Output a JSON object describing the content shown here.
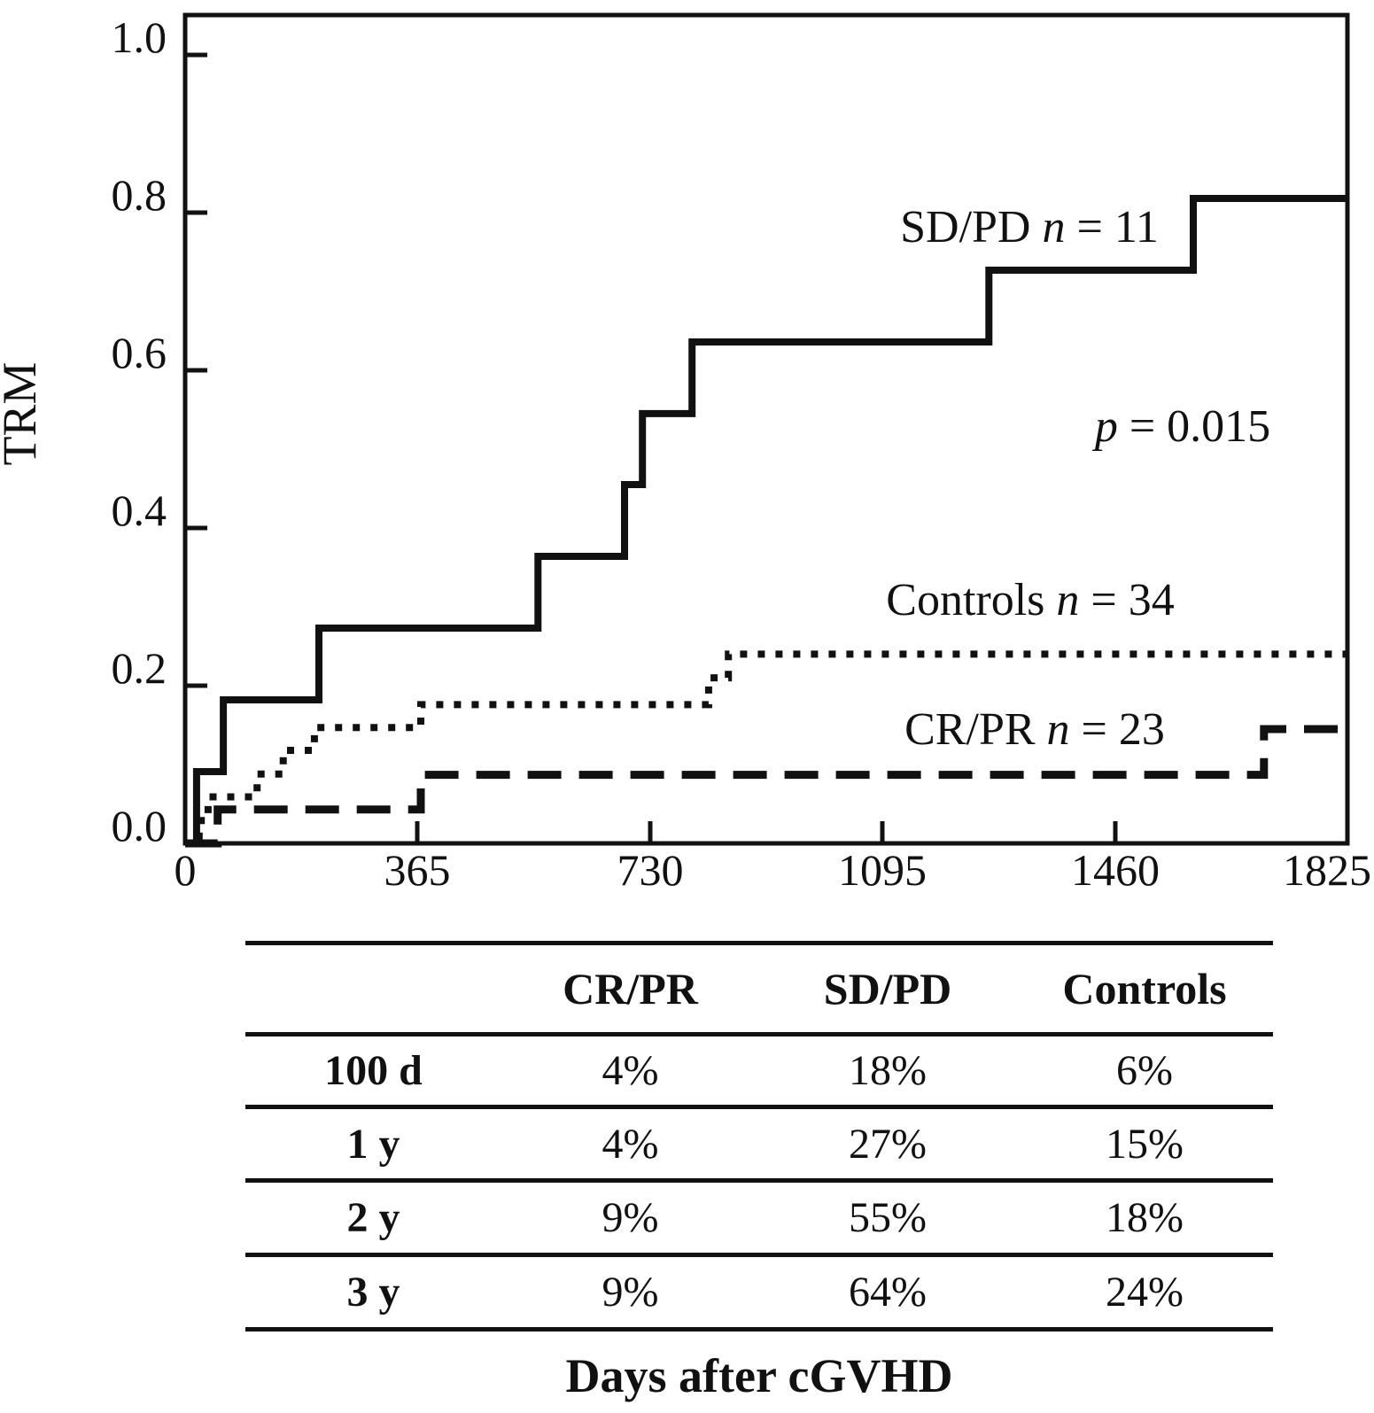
{
  "figure": {
    "ylabel": "TRM",
    "xlabel": "Days after cGVHD"
  },
  "chart_data": {
    "type": "line",
    "subtype": "cumulative-incidence step curves",
    "title": "",
    "xlabel": "Days after cGVHD",
    "ylabel": "TRM",
    "xlim": [
      0,
      1825
    ],
    "ylim": [
      0,
      1.05
    ],
    "grid": false,
    "legend_position": "labels drawn next to curves inside plot",
    "xticks": [
      "0",
      "365",
      "730",
      "1095",
      "1460",
      "1825"
    ],
    "yticks": [
      "0.0",
      "0.2",
      "0.4",
      "0.6",
      "0.8",
      "1.0"
    ],
    "pvalue": {
      "italic": "p",
      "rest": " = 0.015"
    },
    "series": [
      {
        "name": "SD/PD",
        "n": 11,
        "line": "solid",
        "label": {
          "prefix": "SD/PD ",
          "italic": "n",
          "suffix": " = 11"
        },
        "steps_day_cuminc": [
          [
            18,
            0.091
          ],
          [
            60,
            0.182
          ],
          [
            210,
            0.273
          ],
          [
            554,
            0.364
          ],
          [
            690,
            0.455
          ],
          [
            718,
            0.545
          ],
          [
            796,
            0.636
          ],
          [
            1262,
            0.727
          ],
          [
            1583,
            0.818
          ]
        ],
        "end_day": 1825
      },
      {
        "name": "Controls",
        "n": 34,
        "line": "dotted",
        "label": {
          "prefix": "Controls ",
          "italic": "n",
          "suffix": " = 34"
        },
        "steps_day_cuminc": [
          [
            22,
            0.029
          ],
          [
            36,
            0.059
          ],
          [
            113,
            0.088
          ],
          [
            154,
            0.118
          ],
          [
            203,
            0.147
          ],
          [
            370,
            0.176
          ],
          [
            822,
            0.21
          ],
          [
            853,
            0.24
          ]
        ],
        "end_day": 1825
      },
      {
        "name": "CR/PR",
        "n": 23,
        "line": "dashed",
        "label": {
          "prefix": "CR/PR ",
          "italic": "n",
          "suffix": " = 23"
        },
        "steps_day_cuminc": [
          [
            51,
            0.043
          ],
          [
            370,
            0.087
          ],
          [
            1694,
            0.145
          ]
        ],
        "end_day": 1825
      }
    ]
  },
  "table": {
    "headers": [
      "",
      "CR/PR",
      "SD/PD",
      "Controls"
    ],
    "rows": [
      [
        "100 d",
        "4%",
        "18%",
        "6%"
      ],
      [
        "1 y",
        "4%",
        "27%",
        "15%"
      ],
      [
        "2 y",
        "9%",
        "55%",
        "18%"
      ],
      [
        "3 y",
        "9%",
        "64%",
        "24%"
      ]
    ]
  }
}
